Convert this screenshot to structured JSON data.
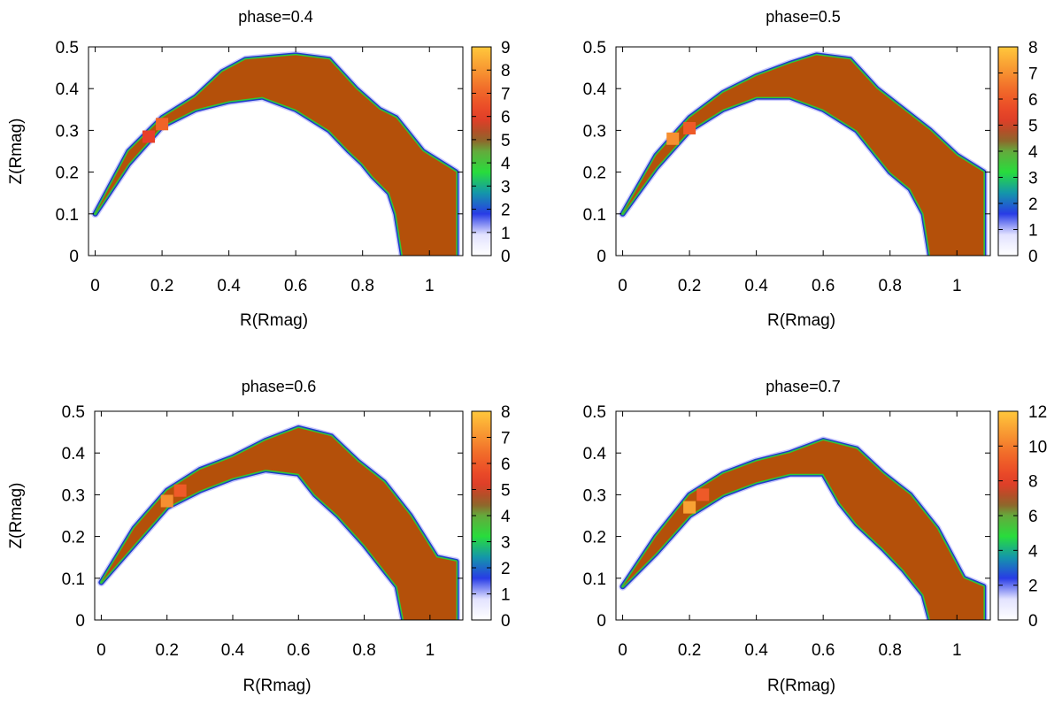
{
  "chart_data": [
    {
      "type": "heatmap",
      "title": "phase=0.4",
      "xlabel": "R(Rmag)",
      "ylabel": "Z(Rmag)",
      "xlim": [
        -0.02,
        1.1
      ],
      "ylim": [
        0,
        0.5
      ],
      "xticks": [
        "0",
        "0.2",
        "0.4",
        "0.6",
        "0.8",
        "1"
      ],
      "yticks": [
        "0",
        "0.1",
        "0.2",
        "0.3",
        "0.4",
        "0.5"
      ],
      "colorbar": {
        "min": 0,
        "max": 9,
        "ticks": [
          "0",
          "1",
          "2",
          "3",
          "4",
          "5",
          "6",
          "7",
          "8",
          "9"
        ]
      },
      "outer_boundary": [
        [
          0,
          0.1
        ],
        [
          0.1,
          0.25
        ],
        [
          0.2,
          0.33
        ],
        [
          0.3,
          0.38
        ],
        [
          0.38,
          0.44
        ],
        [
          0.45,
          0.47
        ],
        [
          0.6,
          0.48
        ],
        [
          0.7,
          0.47
        ],
        [
          0.78,
          0.4
        ],
        [
          0.85,
          0.35
        ],
        [
          0.9,
          0.33
        ],
        [
          0.98,
          0.25
        ],
        [
          1.08,
          0.2
        ],
        [
          1.08,
          0
        ]
      ],
      "inner_boundary": [
        [
          0.92,
          0
        ],
        [
          0.9,
          0.1
        ],
        [
          0.88,
          0.15
        ],
        [
          0.83,
          0.19
        ],
        [
          0.8,
          0.22
        ],
        [
          0.76,
          0.25
        ],
        [
          0.7,
          0.3
        ],
        [
          0.6,
          0.35
        ],
        [
          0.5,
          0.38
        ],
        [
          0.4,
          0.37
        ],
        [
          0.3,
          0.35
        ],
        [
          0.2,
          0.31
        ],
        [
          0.1,
          0.22
        ],
        [
          0,
          0.1
        ]
      ],
      "hotspots": [
        {
          "r": 0.2,
          "z": 0.315,
          "value": 7
        },
        {
          "r": 0.16,
          "z": 0.285,
          "value": 6
        }
      ]
    },
    {
      "type": "heatmap",
      "title": "phase=0.5",
      "xlabel": "R(Rmag)",
      "ylabel": "Z(Rmag)",
      "xlim": [
        -0.02,
        1.1
      ],
      "ylim": [
        0,
        0.5
      ],
      "xticks": [
        "0",
        "0.2",
        "0.4",
        "0.6",
        "0.8",
        "1"
      ],
      "yticks": [
        "0",
        "0.1",
        "0.2",
        "0.3",
        "0.4",
        "0.5"
      ],
      "colorbar": {
        "min": 0,
        "max": 8,
        "ticks": [
          "0",
          "1",
          "2",
          "3",
          "4",
          "5",
          "6",
          "7",
          "8"
        ]
      },
      "outer_boundary": [
        [
          0,
          0.1
        ],
        [
          0.1,
          0.24
        ],
        [
          0.2,
          0.33
        ],
        [
          0.3,
          0.39
        ],
        [
          0.4,
          0.43
        ],
        [
          0.5,
          0.46
        ],
        [
          0.58,
          0.48
        ],
        [
          0.68,
          0.47
        ],
        [
          0.76,
          0.4
        ],
        [
          0.84,
          0.35
        ],
        [
          0.92,
          0.3
        ],
        [
          1.0,
          0.24
        ],
        [
          1.08,
          0.2
        ],
        [
          1.08,
          0
        ]
      ],
      "inner_boundary": [
        [
          0.92,
          0
        ],
        [
          0.9,
          0.1
        ],
        [
          0.86,
          0.16
        ],
        [
          0.8,
          0.2
        ],
        [
          0.75,
          0.25
        ],
        [
          0.7,
          0.3
        ],
        [
          0.6,
          0.35
        ],
        [
          0.5,
          0.38
        ],
        [
          0.4,
          0.38
        ],
        [
          0.3,
          0.35
        ],
        [
          0.2,
          0.3
        ],
        [
          0.1,
          0.21
        ],
        [
          0,
          0.1
        ]
      ],
      "hotspots": [
        {
          "r": 0.15,
          "z": 0.28,
          "value": 7
        },
        {
          "r": 0.2,
          "z": 0.305,
          "value": 6
        }
      ]
    },
    {
      "type": "heatmap",
      "title": "phase=0.6",
      "xlabel": "R(Rmag)",
      "ylabel": "Z(Rmag)",
      "xlim": [
        -0.02,
        1.1
      ],
      "ylim": [
        0,
        0.5
      ],
      "xticks": [
        "0",
        "0.2",
        "0.4",
        "0.6",
        "0.8",
        "1"
      ],
      "yticks": [
        "0",
        "0.1",
        "0.2",
        "0.3",
        "0.4",
        "0.5"
      ],
      "colorbar": {
        "min": 0,
        "max": 8,
        "ticks": [
          "0",
          "1",
          "2",
          "3",
          "4",
          "5",
          "6",
          "7",
          "8"
        ]
      },
      "outer_boundary": [
        [
          0,
          0.09
        ],
        [
          0.1,
          0.22
        ],
        [
          0.2,
          0.31
        ],
        [
          0.3,
          0.36
        ],
        [
          0.4,
          0.39
        ],
        [
          0.5,
          0.43
        ],
        [
          0.6,
          0.46
        ],
        [
          0.7,
          0.44
        ],
        [
          0.78,
          0.38
        ],
        [
          0.86,
          0.33
        ],
        [
          0.94,
          0.25
        ],
        [
          1.02,
          0.15
        ],
        [
          1.08,
          0.14
        ],
        [
          1.08,
          0
        ]
      ],
      "inner_boundary": [
        [
          0.92,
          0
        ],
        [
          0.9,
          0.08
        ],
        [
          0.85,
          0.13
        ],
        [
          0.8,
          0.18
        ],
        [
          0.72,
          0.25
        ],
        [
          0.65,
          0.3
        ],
        [
          0.6,
          0.35
        ],
        [
          0.5,
          0.36
        ],
        [
          0.4,
          0.34
        ],
        [
          0.3,
          0.31
        ],
        [
          0.2,
          0.27
        ],
        [
          0.1,
          0.18
        ],
        [
          0,
          0.09
        ]
      ],
      "hotspots": [
        {
          "r": 0.2,
          "z": 0.285,
          "value": 7
        },
        {
          "r": 0.24,
          "z": 0.31,
          "value": 6
        }
      ]
    },
    {
      "type": "heatmap",
      "title": "phase=0.7",
      "xlabel": "R(Rmag)",
      "ylabel": "Z(Rmag)",
      "xlim": [
        -0.02,
        1.1
      ],
      "ylim": [
        0,
        0.5
      ],
      "xticks": [
        "0",
        "0.2",
        "0.4",
        "0.6",
        "0.8",
        "1"
      ],
      "yticks": [
        "0",
        "0.1",
        "0.2",
        "0.3",
        "0.4",
        "0.5"
      ],
      "colorbar": {
        "min": 0,
        "max": 12,
        "ticks": [
          "0",
          "2",
          "4",
          "6",
          "8",
          "10",
          "12"
        ]
      },
      "outer_boundary": [
        [
          0,
          0.08
        ],
        [
          0.1,
          0.2
        ],
        [
          0.2,
          0.3
        ],
        [
          0.3,
          0.35
        ],
        [
          0.4,
          0.38
        ],
        [
          0.5,
          0.4
        ],
        [
          0.6,
          0.43
        ],
        [
          0.7,
          0.41
        ],
        [
          0.78,
          0.35
        ],
        [
          0.86,
          0.3
        ],
        [
          0.94,
          0.22
        ],
        [
          1.02,
          0.1
        ],
        [
          1.08,
          0.08
        ],
        [
          1.08,
          0
        ]
      ],
      "inner_boundary": [
        [
          0.92,
          0
        ],
        [
          0.9,
          0.06
        ],
        [
          0.84,
          0.12
        ],
        [
          0.78,
          0.17
        ],
        [
          0.7,
          0.23
        ],
        [
          0.65,
          0.28
        ],
        [
          0.6,
          0.35
        ],
        [
          0.5,
          0.35
        ],
        [
          0.4,
          0.33
        ],
        [
          0.3,
          0.3
        ],
        [
          0.2,
          0.25
        ],
        [
          0.1,
          0.16
        ],
        [
          0,
          0.08
        ]
      ],
      "hotspots": [
        {
          "r": 0.2,
          "z": 0.27,
          "value": 11
        },
        {
          "r": 0.24,
          "z": 0.3,
          "value": 9
        }
      ]
    }
  ]
}
